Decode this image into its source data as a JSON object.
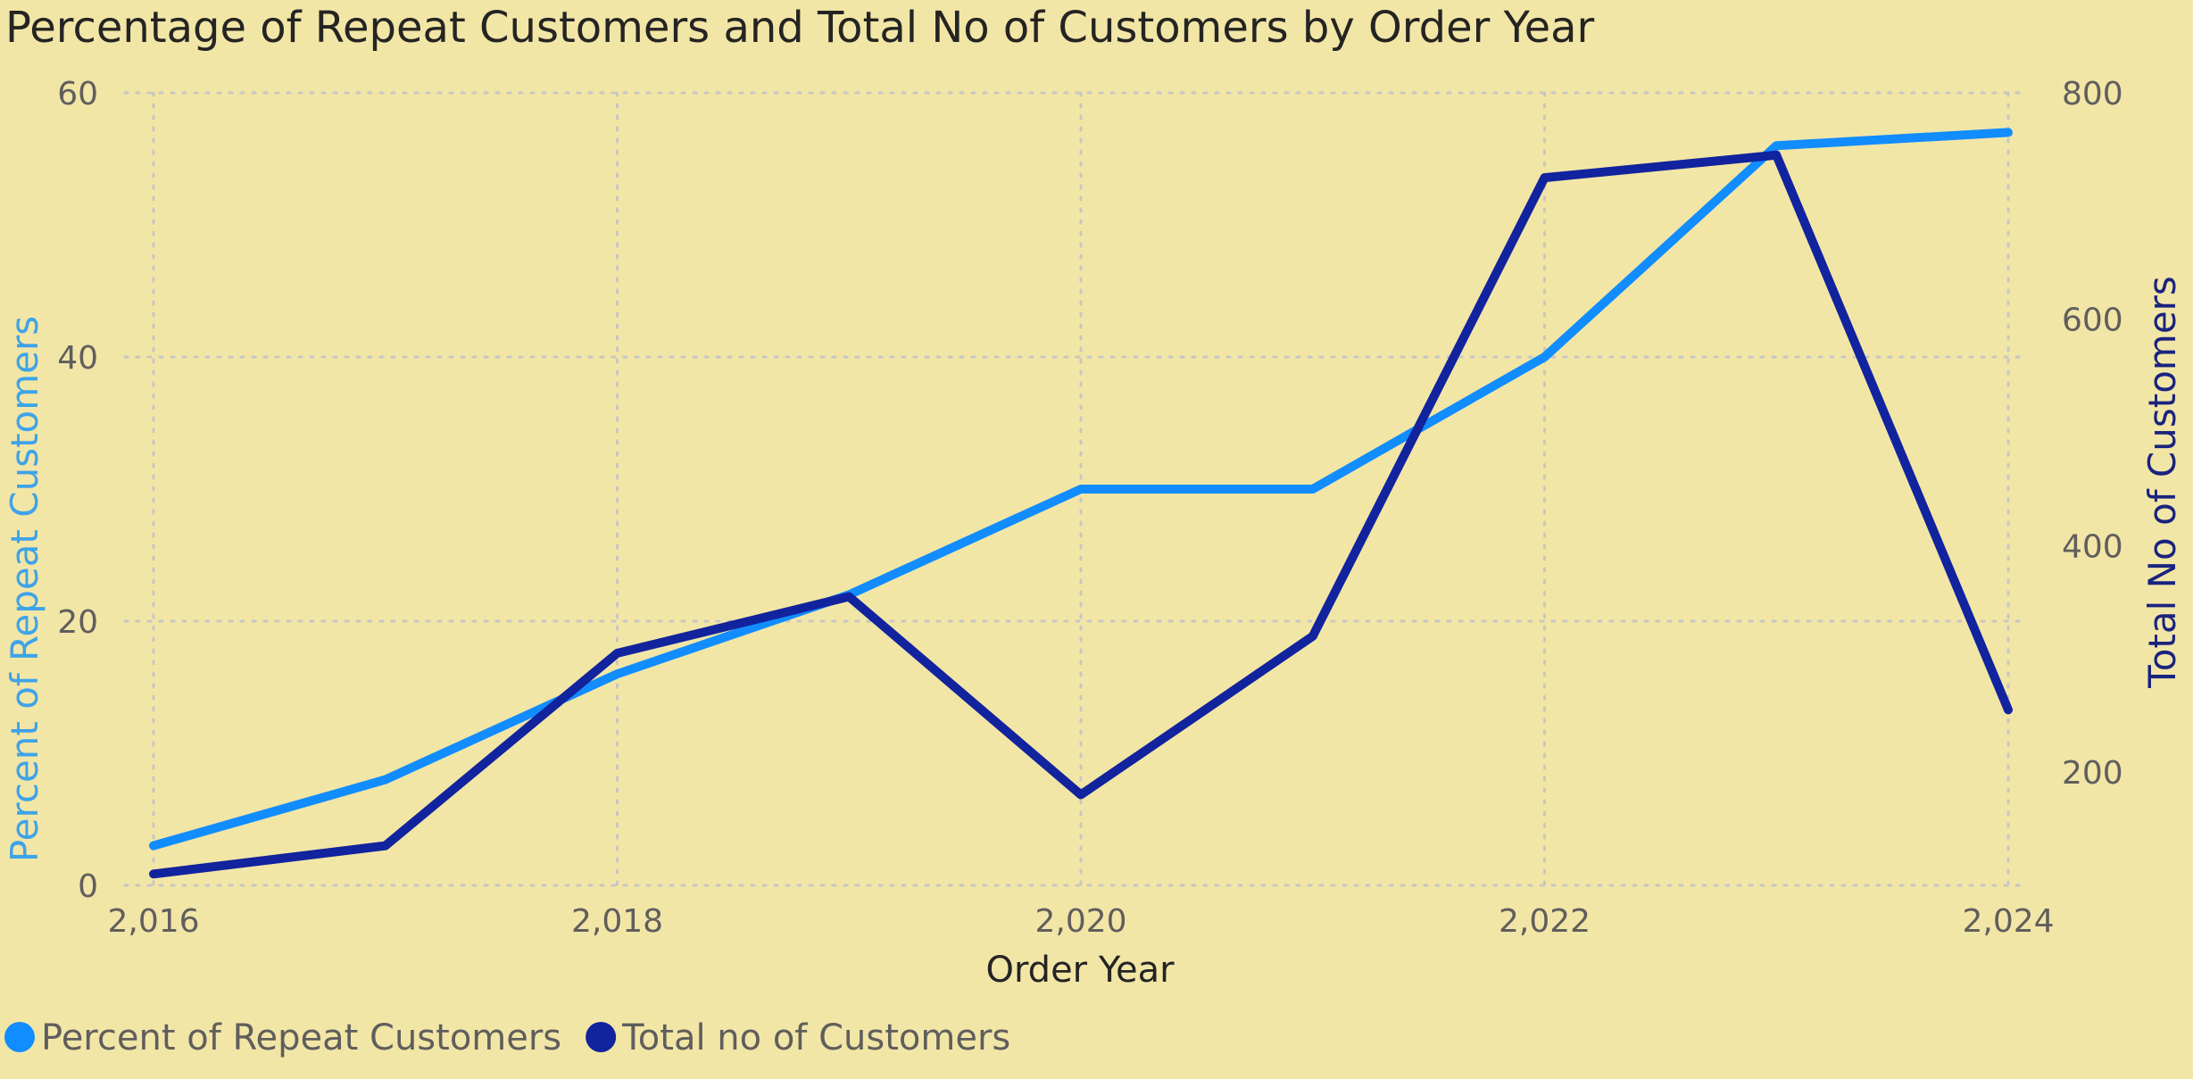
{
  "chart_data": {
    "type": "line",
    "title": "Percentage of Repeat Customers and Total No of Customers by Order Year",
    "xlabel": "Order Year",
    "x": [
      2016,
      2017,
      2018,
      2019,
      2020,
      2021,
      2022,
      2023,
      2024
    ],
    "x_ticks": [
      2016,
      2018,
      2020,
      2022,
      2024
    ],
    "x_tick_labels": [
      "2,016",
      "2,018",
      "2,020",
      "2,022",
      "2,024"
    ],
    "xlim": [
      2016,
      2024
    ],
    "y1label": "Percent of Repeat Customers",
    "y1lim": [
      0,
      60
    ],
    "y1_ticks": [
      0,
      20,
      40,
      60
    ],
    "y2label": "Total No of Customers",
    "y2lim": [
      100,
      800
    ],
    "y2_ticks": [
      200,
      400,
      600,
      800
    ],
    "grid": true,
    "legend_position": "bottom-left",
    "series": [
      {
        "name": "Percent of Repeat Customers",
        "axis": "y1",
        "color": "#118DFF",
        "values": [
          3,
          8,
          16,
          22,
          30,
          30,
          40,
          56,
          57
        ]
      },
      {
        "name": "Total no of Customers",
        "axis": "y2",
        "color": "#12239E",
        "values": [
          110,
          135,
          305,
          355,
          180,
          320,
          725,
          745,
          255
        ]
      }
    ]
  }
}
